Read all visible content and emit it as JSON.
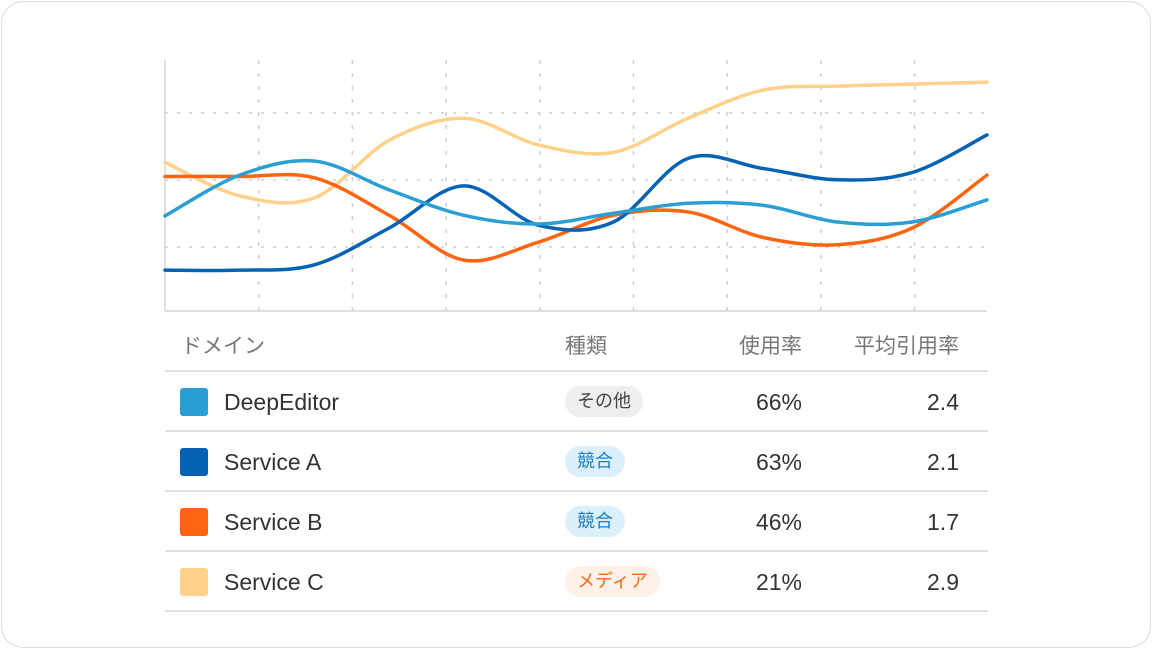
{
  "chart_data": {
    "type": "line",
    "title": "",
    "xlabel": "",
    "ylabel": "",
    "x": [
      0,
      1,
      2,
      3,
      4,
      5,
      6,
      7,
      8,
      9,
      10,
      11
    ],
    "ylim": [
      0,
      3.75
    ],
    "grid": true,
    "series": [
      {
        "name": "DeepEditor",
        "color": "#2a9fd6",
        "values": [
          1.42,
          2.03,
          2.24,
          1.81,
          1.43,
          1.3,
          1.46,
          1.61,
          1.58,
          1.33,
          1.33,
          1.66
        ]
      },
      {
        "name": "Service A",
        "color": "#0563b5",
        "values": [
          0.61,
          0.61,
          0.69,
          1.24,
          1.87,
          1.28,
          1.33,
          2.28,
          2.13,
          1.96,
          2.07,
          2.63
        ]
      },
      {
        "name": "Service B",
        "color": "#ff6410",
        "values": [
          2.01,
          2.01,
          1.99,
          1.43,
          0.76,
          1.03,
          1.43,
          1.48,
          1.1,
          0.99,
          1.24,
          2.03
        ]
      },
      {
        "name": "Service C",
        "color": "#ffd18a",
        "values": [
          2.22,
          1.72,
          1.69,
          2.55,
          2.88,
          2.48,
          2.37,
          2.88,
          3.3,
          3.36,
          3.39,
          3.42
        ]
      }
    ]
  },
  "table": {
    "headers": {
      "domain": "ドメイン",
      "type": "種類",
      "usage": "使用率",
      "citation": "平均引用率"
    },
    "rows": [
      {
        "domain": "DeepEditor",
        "color": "#2a9fd6",
        "type": "その他",
        "type_bg": "#eeeeee",
        "type_fg": "#444444",
        "usage": "66%",
        "citation": "2.4"
      },
      {
        "domain": "Service A",
        "color": "#0563b5",
        "type": "競合",
        "type_bg": "#dcf0fb",
        "type_fg": "#1a7fc1",
        "usage": "63%",
        "citation": "2.1"
      },
      {
        "domain": "Service B",
        "color": "#ff6410",
        "type": "競合",
        "type_bg": "#dcf0fb",
        "type_fg": "#1a7fc1",
        "usage": "46%",
        "citation": "1.7"
      },
      {
        "domain": "Service C",
        "color": "#ffd18a",
        "type": "メディア",
        "type_bg": "#fff0e8",
        "type_fg": "#f26a1b",
        "usage": "21%",
        "citation": "2.9"
      }
    ]
  }
}
